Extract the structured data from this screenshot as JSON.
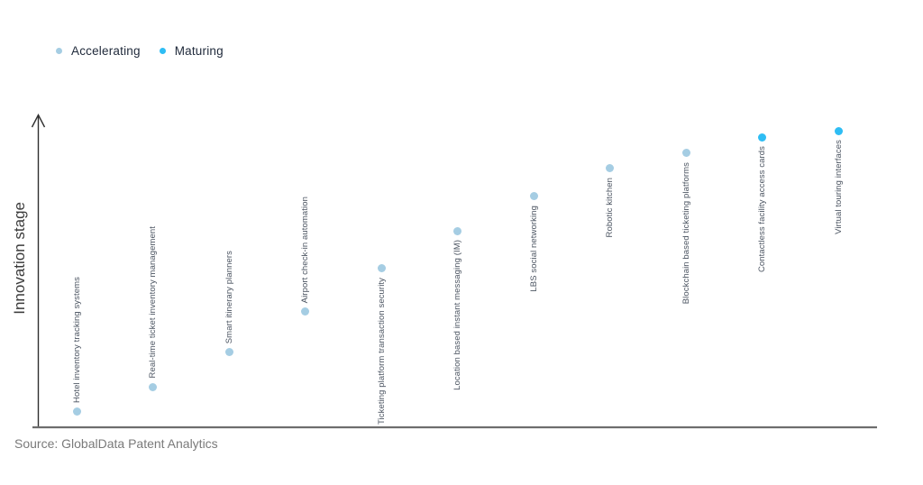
{
  "source_note": "Source: GlobalData Patent Analytics",
  "chart_data": {
    "type": "scatter",
    "title": "",
    "xlabel": "",
    "ylabel": "Innovation stage",
    "ylim": [
      0,
      100
    ],
    "grid": false,
    "legend_position": "top-left",
    "legend": [
      {
        "name": "Accelerating",
        "color": "#a5cde3"
      },
      {
        "name": "Maturing",
        "color": "#2ebdf4"
      }
    ],
    "points": [
      {
        "label": "Hotel inventory tracking systems",
        "series": "Accelerating",
        "stage_value": 5
      },
      {
        "label": "Real-time ticket inventory management",
        "series": "Accelerating",
        "stage_value": 13
      },
      {
        "label": "Smart itinerary planners",
        "series": "Accelerating",
        "stage_value": 24
      },
      {
        "label": "Airport check-in automation",
        "series": "Accelerating",
        "stage_value": 37
      },
      {
        "label": "Ticketing platform transaction security",
        "series": "Accelerating",
        "stage_value": 51
      },
      {
        "label": "Location based instant messaging (IM)",
        "series": "Accelerating",
        "stage_value": 63
      },
      {
        "label": "LBS social networking",
        "series": "Accelerating",
        "stage_value": 74
      },
      {
        "label": "Robotic kitchen",
        "series": "Accelerating",
        "stage_value": 83
      },
      {
        "label": "Blockchain based ticketing platforms",
        "series": "Accelerating",
        "stage_value": 88
      },
      {
        "label": "Contactless facility access cards",
        "series": "Maturing",
        "stage_value": 93
      },
      {
        "label": "Virtual touring interfaces",
        "series": "Maturing",
        "stage_value": 95
      }
    ]
  }
}
